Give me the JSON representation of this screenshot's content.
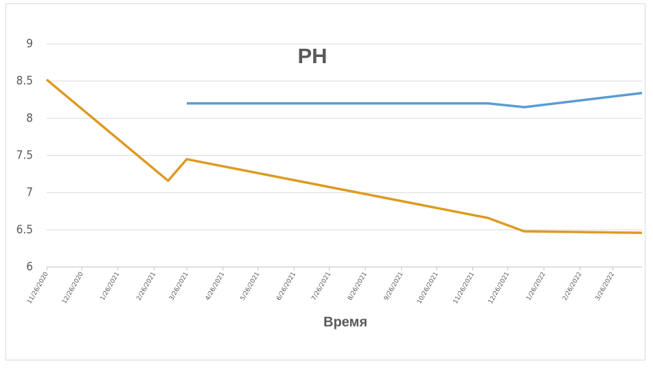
{
  "chart_data": {
    "type": "line",
    "title": "PH",
    "x_label": "Время",
    "series": [
      {
        "color": "#5b9bd5",
        "x": [
          "3/26/2021",
          "12/9/2021",
          "1/9/2022",
          "4/20/2022"
        ],
        "values": [
          8.2,
          8.2,
          8.15,
          8.34
        ]
      },
      {
        "color": "#dd9a22",
        "x": [
          "11/26/2020",
          "3/10/2021",
          "3/26/2021",
          "12/9/2021",
          "1/9/2022",
          "4/20/2022"
        ],
        "values": [
          8.52,
          7.16,
          7.45,
          6.66,
          6.48,
          6.46
        ]
      }
    ],
    "xlim": [
      "11/26/2020",
      "4/20/2022"
    ],
    "xticks": [
      "11/26/2020",
      "12/26/2020",
      "1/26/2021",
      "2/26/2021",
      "3/26/2021",
      "4/26/2021",
      "5/26/2021",
      "6/26/2021",
      "7/26/2021",
      "8/26/2021",
      "9/26/2021",
      "10/26/2021",
      "11/26/2021",
      "12/26/2021",
      "1/26/2022",
      "2/26/2022",
      "3/26/2022"
    ],
    "ylim": [
      6,
      9
    ],
    "yticks": [
      6,
      6.5,
      7,
      7.5,
      8,
      8.5,
      9
    ],
    "grid": true
  }
}
